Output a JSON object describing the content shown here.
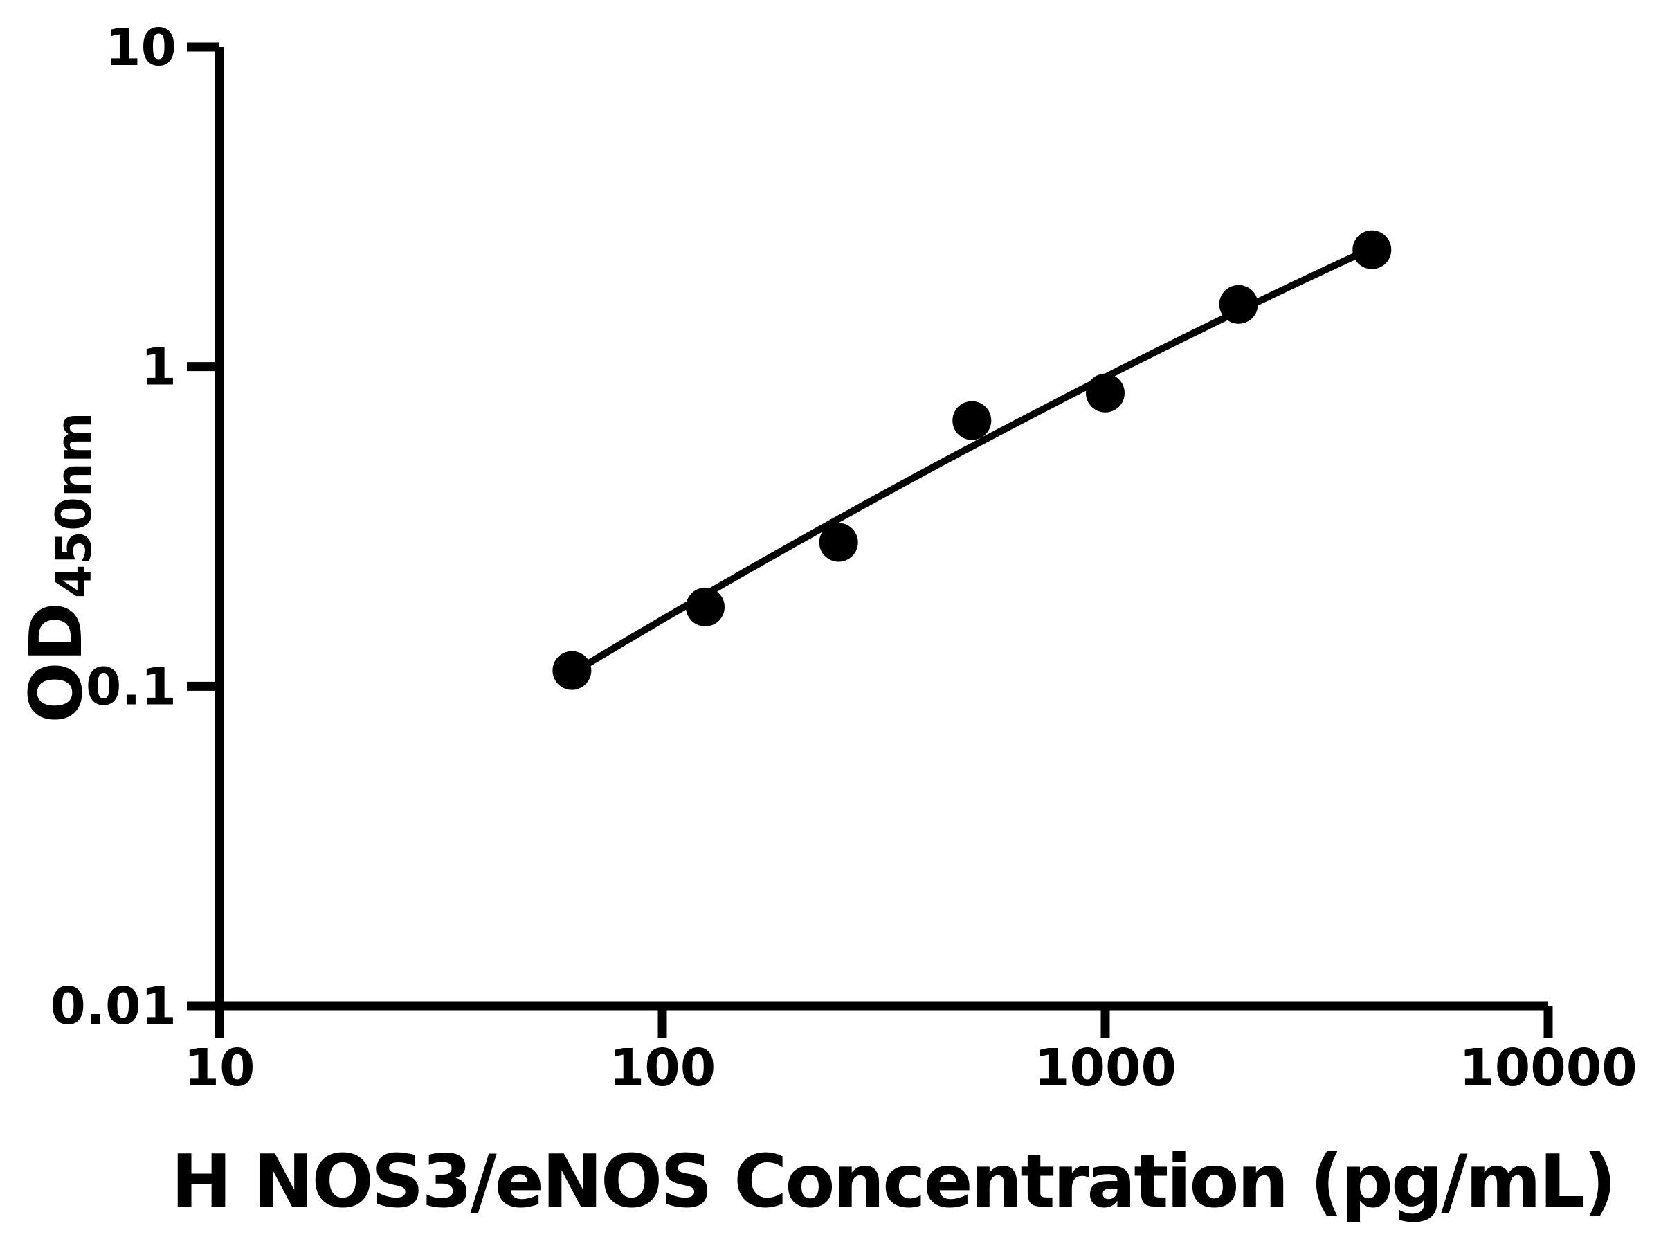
{
  "figure": {
    "background_color": "#ffffff",
    "foreground_color": "#000000"
  },
  "chart_data": {
    "type": "scatter",
    "title": "",
    "xlabel": "H NOS3/eNOS Concentration (pg/mL)",
    "ylabel_main": "OD",
    "ylabel_sub": "450nm",
    "x_scale": "log10",
    "y_scale": "log10",
    "xlim": [
      10,
      10000
    ],
    "ylim": [
      0.01,
      10
    ],
    "x_ticks": [
      10,
      100,
      1000,
      10000
    ],
    "x_tick_labels": [
      "10",
      "100",
      "1000",
      "10000"
    ],
    "y_ticks": [
      10,
      1,
      0.1,
      0.01
    ],
    "y_tick_labels": [
      "10",
      "1",
      "0.1",
      "0.01"
    ],
    "grid": false,
    "legend": "none",
    "series": [
      {
        "name": "standard-curve-points",
        "marker": "circle",
        "color": "#000000",
        "x": [
          62.5,
          125,
          250,
          500,
          1000,
          2000,
          4000
        ],
        "y": [
          0.112,
          0.177,
          0.282,
          0.678,
          0.827,
          1.566,
          2.322
        ]
      }
    ],
    "fit_curve": {
      "type": "quadratic_in_log10",
      "description": "log10(OD) = a + b*t + c*t^2 where t = log10(concentration pg/mL)",
      "a": -2.637,
      "b": 1.0324,
      "c": -0.0548,
      "t_start": 1.7959,
      "t_end": 3.6021,
      "color": "#000000"
    }
  }
}
